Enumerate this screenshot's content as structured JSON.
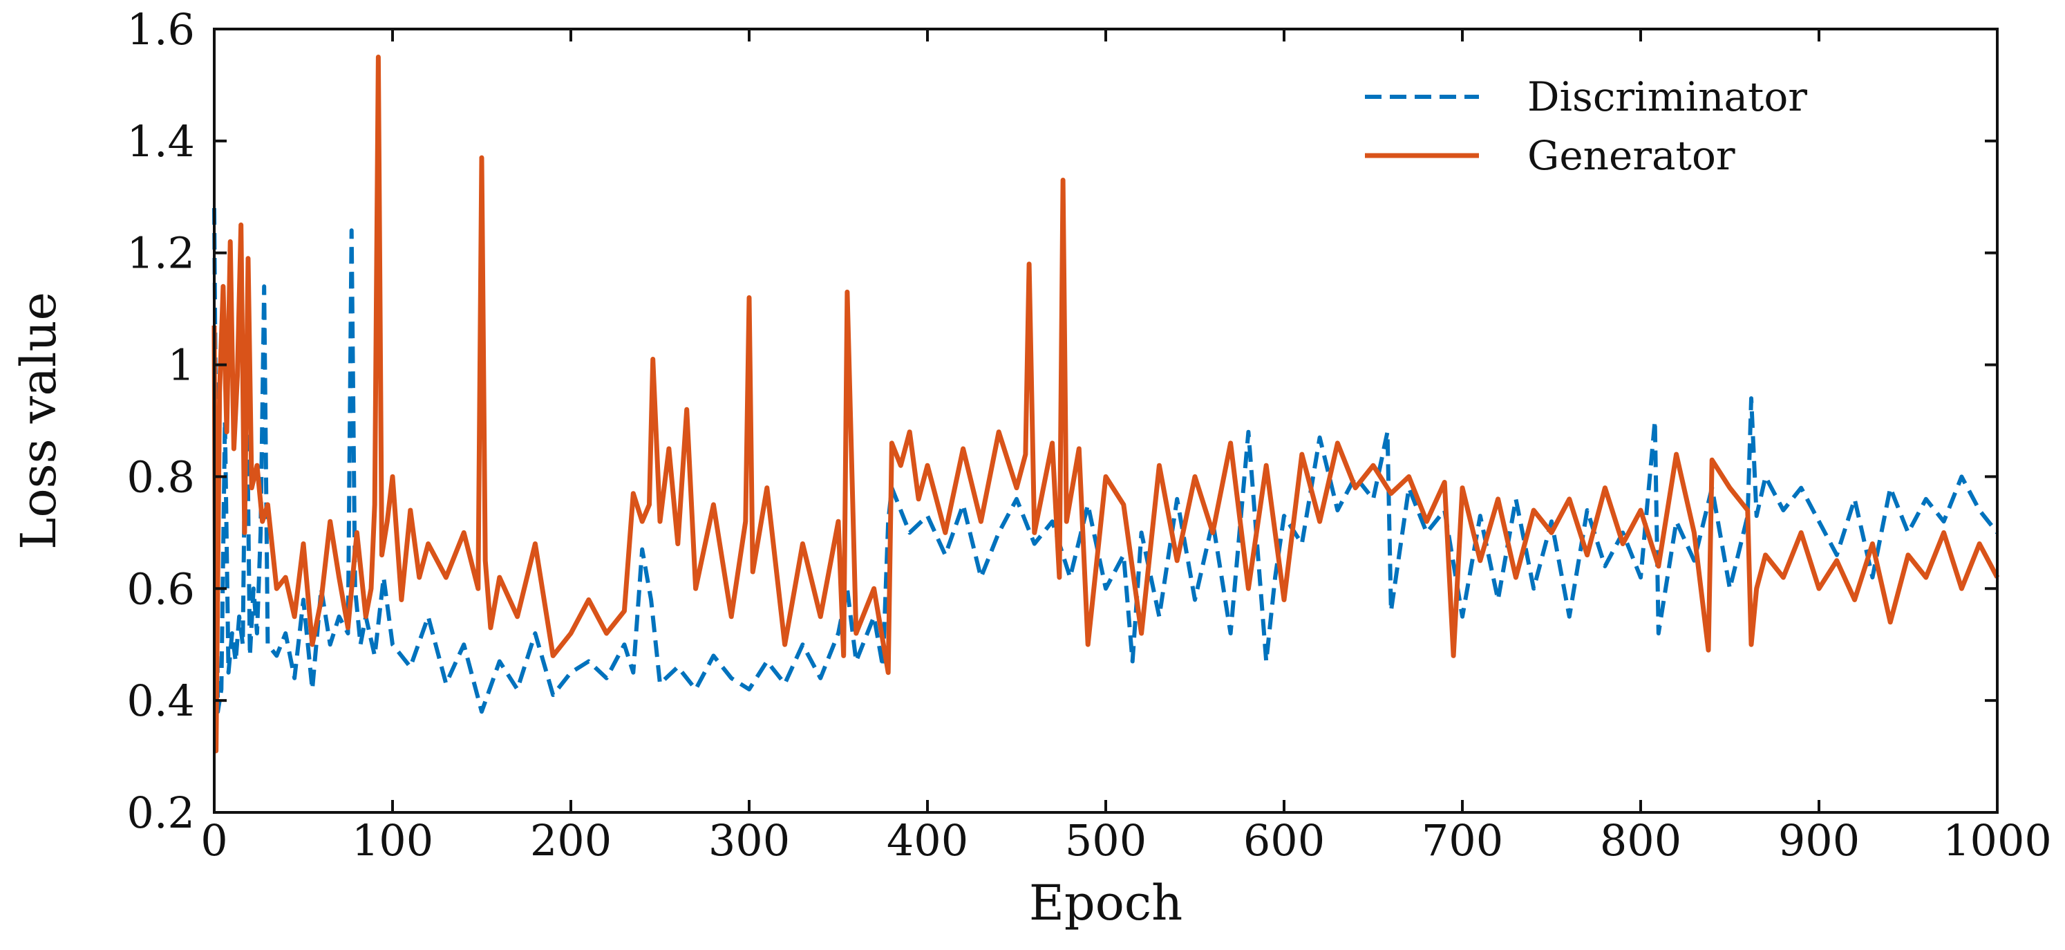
{
  "chart_data": {
    "type": "line",
    "title": "",
    "xlabel": "Epoch",
    "ylabel": "Loss value",
    "xlim": [
      0,
      1000
    ],
    "ylim": [
      0.2,
      1.6
    ],
    "xticks": [
      0,
      100,
      200,
      300,
      400,
      500,
      600,
      700,
      800,
      900,
      1000
    ],
    "yticks": [
      0.2,
      0.4,
      0.6,
      0.8,
      1.0,
      1.2,
      1.4,
      1.6
    ],
    "xtick_labels": [
      "0",
      "100",
      "200",
      "300",
      "400",
      "500",
      "600",
      "700",
      "800",
      "900",
      "1000"
    ],
    "ytick_labels": [
      "0.2",
      "0.4",
      "0.6",
      "0.8",
      "1",
      "1.2",
      "1.4",
      "1.6"
    ],
    "grid": false,
    "legend_position": "top-right",
    "series": [
      {
        "name": "Discriminator",
        "color": "#0072BD",
        "style": "dashed",
        "x": [
          0,
          2,
          4,
          6,
          8,
          10,
          12,
          14,
          16,
          18,
          20,
          22,
          24,
          26,
          28,
          30,
          35,
          40,
          45,
          50,
          55,
          60,
          65,
          70,
          75,
          77,
          79,
          82,
          85,
          90,
          95,
          100,
          110,
          120,
          130,
          140,
          150,
          160,
          170,
          180,
          190,
          200,
          210,
          220,
          230,
          235,
          240,
          245,
          250,
          260,
          270,
          280,
          290,
          300,
          310,
          320,
          330,
          340,
          350,
          355,
          360,
          370,
          375,
          378,
          380,
          385,
          390,
          400,
          410,
          420,
          430,
          440,
          450,
          460,
          470,
          480,
          490,
          500,
          510,
          515,
          520,
          530,
          540,
          550,
          560,
          570,
          580,
          590,
          595,
          600,
          610,
          620,
          630,
          640,
          650,
          658,
          660,
          670,
          680,
          690,
          700,
          710,
          720,
          730,
          740,
          750,
          760,
          770,
          780,
          790,
          800,
          808,
          810,
          820,
          830,
          840,
          850,
          860,
          862,
          865,
          870,
          880,
          890,
          900,
          910,
          920,
          930,
          940,
          950,
          960,
          970,
          980,
          990,
          1000
        ],
        "y": [
          1.28,
          0.38,
          0.42,
          0.9,
          0.45,
          0.52,
          0.47,
          0.55,
          0.5,
          1.05,
          0.48,
          0.6,
          0.52,
          0.7,
          1.14,
          0.5,
          0.48,
          0.52,
          0.44,
          0.58,
          0.42,
          0.6,
          0.5,
          0.55,
          0.52,
          1.24,
          0.6,
          0.5,
          0.55,
          0.48,
          0.62,
          0.5,
          0.46,
          0.55,
          0.43,
          0.5,
          0.38,
          0.47,
          0.42,
          0.52,
          0.41,
          0.45,
          0.47,
          0.44,
          0.5,
          0.45,
          0.67,
          0.58,
          0.43,
          0.46,
          0.42,
          0.48,
          0.44,
          0.42,
          0.47,
          0.43,
          0.5,
          0.44,
          0.52,
          0.6,
          0.47,
          0.55,
          0.46,
          0.72,
          0.78,
          0.74,
          0.7,
          0.73,
          0.66,
          0.75,
          0.62,
          0.7,
          0.76,
          0.68,
          0.72,
          0.62,
          0.75,
          0.6,
          0.66,
          0.47,
          0.7,
          0.55,
          0.76,
          0.58,
          0.72,
          0.52,
          0.88,
          0.47,
          0.62,
          0.73,
          0.68,
          0.87,
          0.74,
          0.8,
          0.76,
          0.88,
          0.56,
          0.78,
          0.7,
          0.74,
          0.55,
          0.73,
          0.58,
          0.76,
          0.6,
          0.72,
          0.55,
          0.74,
          0.64,
          0.7,
          0.62,
          0.9,
          0.52,
          0.72,
          0.65,
          0.78,
          0.6,
          0.73,
          0.94,
          0.73,
          0.8,
          0.74,
          0.78,
          0.72,
          0.66,
          0.76,
          0.62,
          0.78,
          0.7,
          0.76,
          0.72,
          0.8,
          0.74,
          0.7
        ]
      },
      {
        "name": "Generator",
        "color": "#D95319",
        "style": "solid",
        "x": [
          0,
          1,
          3,
          5,
          7,
          9,
          11,
          13,
          15,
          17,
          19,
          21,
          24,
          27,
          30,
          35,
          40,
          45,
          50,
          55,
          60,
          65,
          70,
          75,
          80,
          85,
          88,
          90,
          92,
          94,
          97,
          100,
          105,
          110,
          115,
          120,
          130,
          140,
          148,
          150,
          152,
          155,
          160,
          170,
          180,
          190,
          200,
          210,
          220,
          230,
          235,
          240,
          244,
          246,
          250,
          255,
          260,
          265,
          270,
          280,
          290,
          298,
          300,
          302,
          310,
          320,
          330,
          340,
          350,
          353,
          355,
          360,
          370,
          378,
          380,
          385,
          390,
          395,
          400,
          410,
          420,
          430,
          440,
          450,
          455,
          457,
          460,
          470,
          474,
          476,
          478,
          485,
          490,
          500,
          510,
          520,
          530,
          540,
          550,
          560,
          570,
          580,
          590,
          600,
          610,
          620,
          630,
          640,
          650,
          660,
          670,
          680,
          690,
          695,
          700,
          710,
          720,
          730,
          740,
          750,
          760,
          770,
          780,
          790,
          800,
          810,
          820,
          830,
          838,
          840,
          850,
          860,
          862,
          865,
          870,
          880,
          890,
          900,
          910,
          920,
          930,
          940,
          950,
          960,
          970,
          980,
          990,
          1000
        ],
        "y": [
          1.07,
          0.31,
          0.95,
          1.14,
          0.88,
          1.22,
          0.85,
          0.98,
          1.25,
          0.7,
          1.19,
          0.78,
          0.82,
          0.72,
          0.75,
          0.6,
          0.62,
          0.55,
          0.68,
          0.5,
          0.58,
          0.72,
          0.62,
          0.53,
          0.7,
          0.55,
          0.6,
          0.75,
          1.55,
          0.66,
          0.72,
          0.8,
          0.58,
          0.74,
          0.62,
          0.68,
          0.62,
          0.7,
          0.6,
          1.37,
          0.65,
          0.53,
          0.62,
          0.55,
          0.68,
          0.48,
          0.52,
          0.58,
          0.52,
          0.56,
          0.77,
          0.72,
          0.75,
          1.01,
          0.72,
          0.85,
          0.68,
          0.92,
          0.6,
          0.75,
          0.55,
          0.72,
          1.12,
          0.63,
          0.78,
          0.5,
          0.68,
          0.55,
          0.72,
          0.48,
          1.13,
          0.52,
          0.6,
          0.45,
          0.86,
          0.82,
          0.88,
          0.76,
          0.82,
          0.7,
          0.85,
          0.72,
          0.88,
          0.78,
          0.84,
          1.18,
          0.7,
          0.86,
          0.62,
          1.33,
          0.72,
          0.85,
          0.5,
          0.8,
          0.75,
          0.52,
          0.82,
          0.65,
          0.8,
          0.7,
          0.86,
          0.6,
          0.82,
          0.58,
          0.84,
          0.72,
          0.86,
          0.78,
          0.82,
          0.77,
          0.8,
          0.72,
          0.79,
          0.48,
          0.78,
          0.65,
          0.76,
          0.62,
          0.74,
          0.7,
          0.76,
          0.66,
          0.78,
          0.68,
          0.74,
          0.64,
          0.84,
          0.7,
          0.49,
          0.83,
          0.78,
          0.74,
          0.5,
          0.6,
          0.66,
          0.62,
          0.7,
          0.6,
          0.65,
          0.58,
          0.68,
          0.54,
          0.66,
          0.62,
          0.7,
          0.6,
          0.68,
          0.62
        ]
      }
    ]
  }
}
